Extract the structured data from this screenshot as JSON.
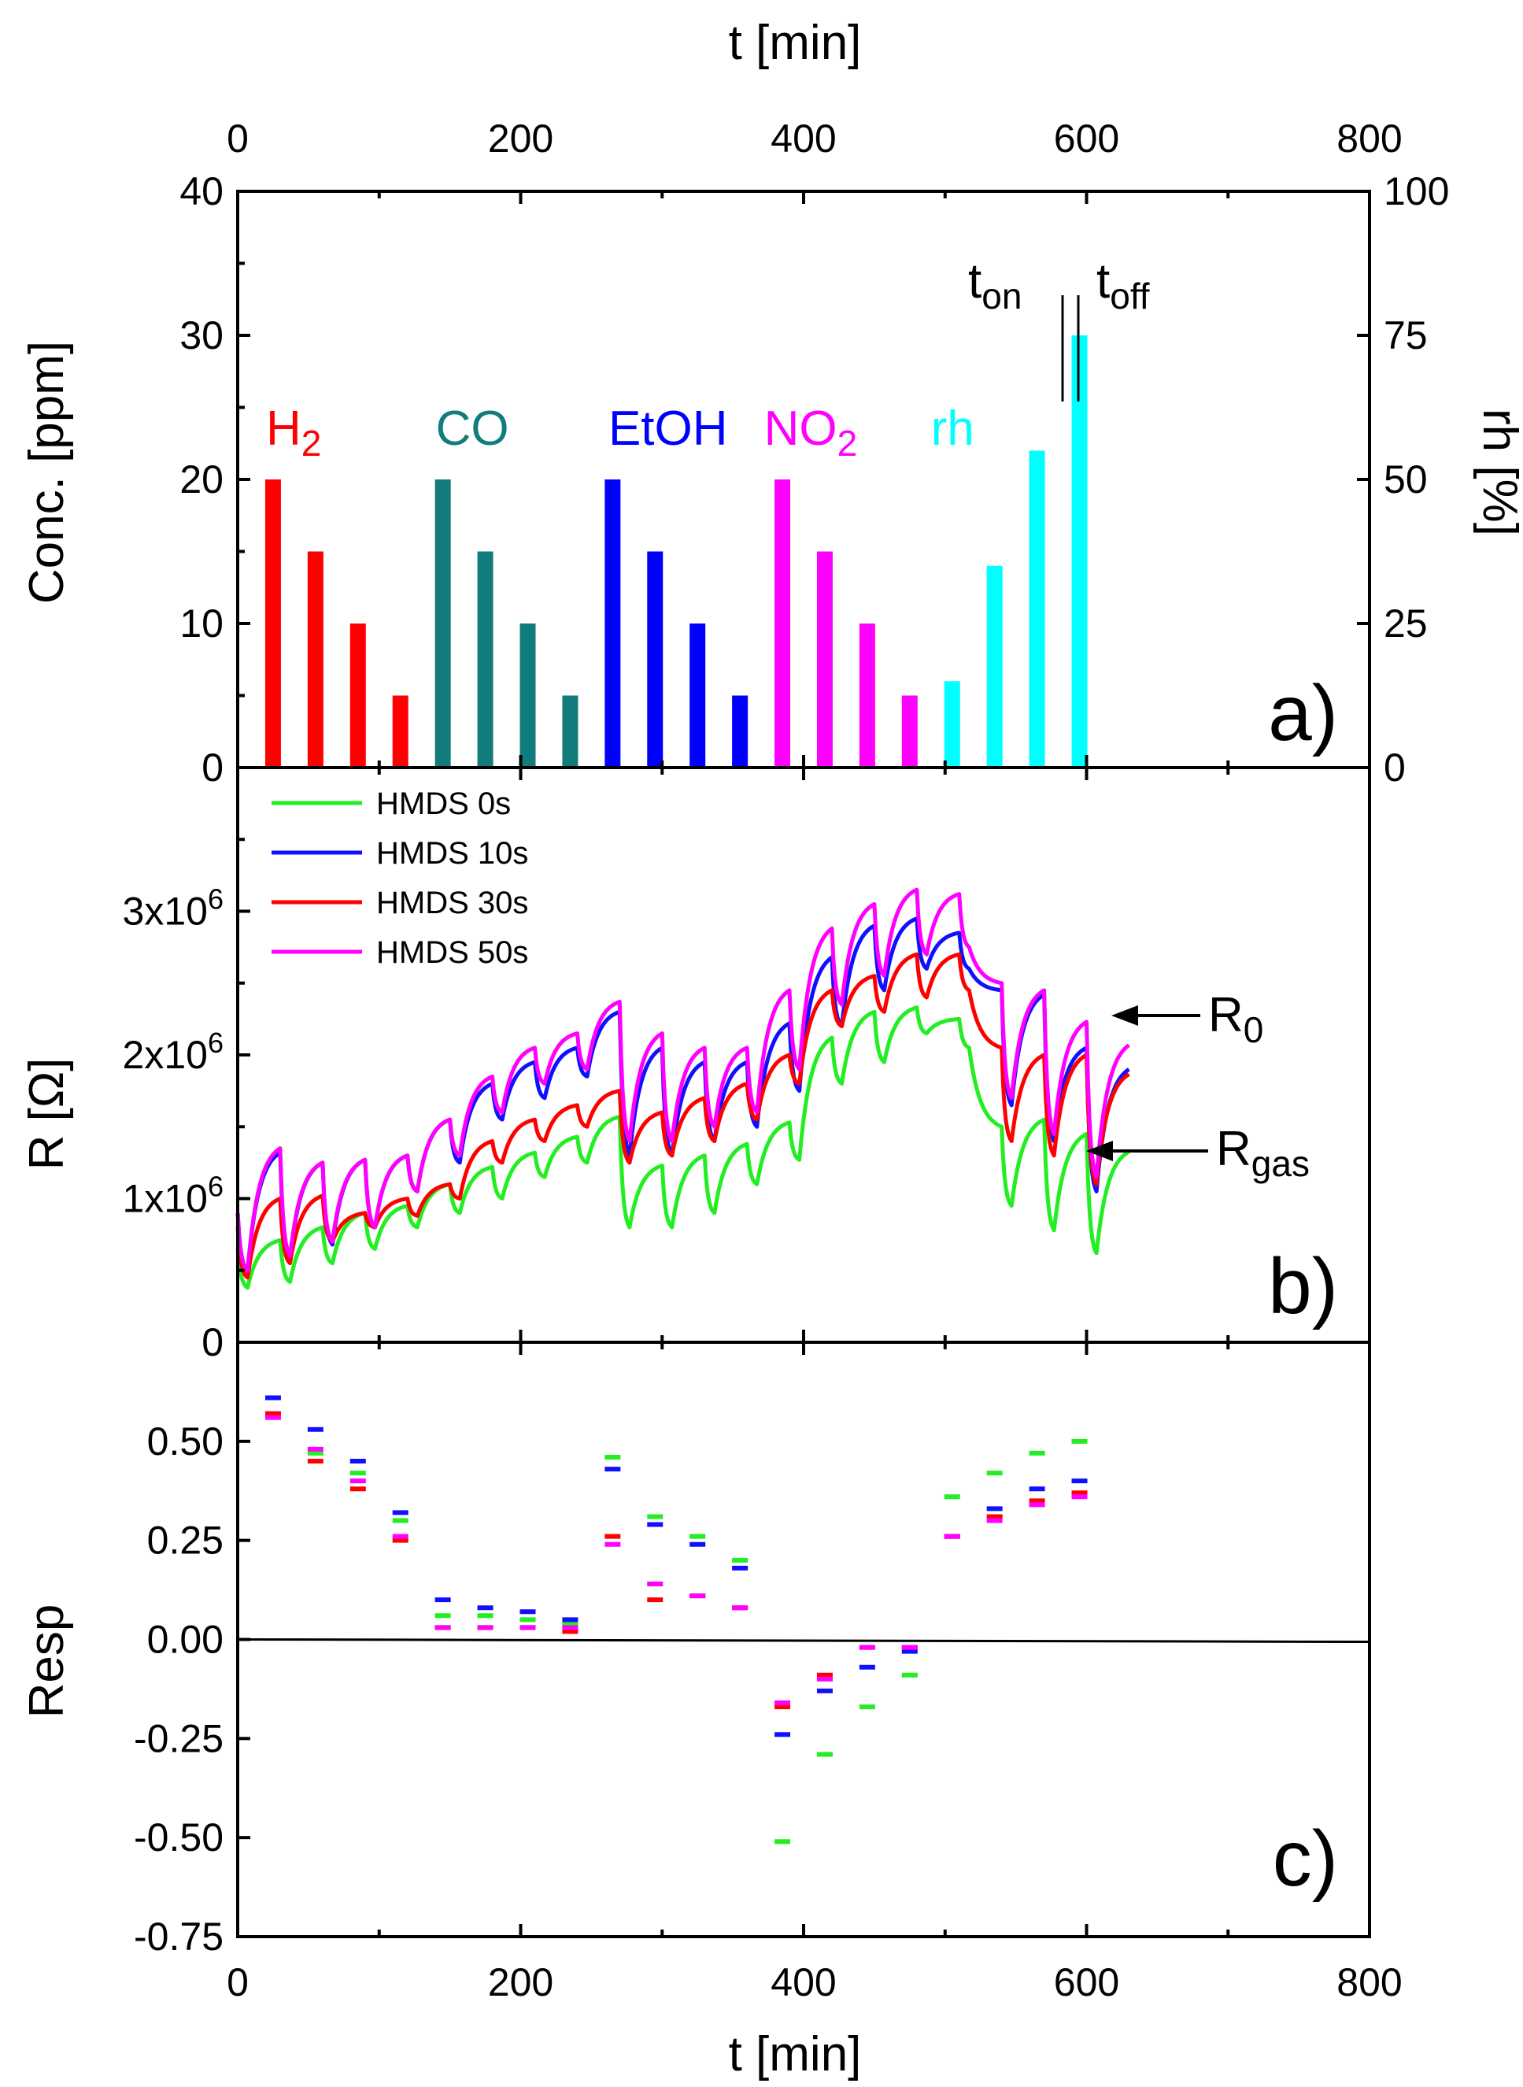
{
  "chart_data": [
    {
      "panel": "a)",
      "type": "bar",
      "top_axis": {
        "label": "t [min]",
        "ticks": [
          "0",
          "200",
          "400",
          "600",
          "800"
        ],
        "range": [
          0,
          800
        ]
      },
      "ylabel": "Conc. [ppm]",
      "ylim": [
        0,
        40
      ],
      "yticks": [
        "0",
        "10",
        "20",
        "30",
        "40"
      ],
      "y2label": "rh [%]",
      "y2lim": [
        0,
        100
      ],
      "y2ticks": [
        "0",
        "25",
        "50",
        "75",
        "100"
      ],
      "gas_labels": [
        {
          "name": "H2",
          "text": "H",
          "sub": "2",
          "color": "#ff0000",
          "t": 20
        },
        {
          "name": "CO",
          "text": "CO",
          "sub": "",
          "color": "#127b7b",
          "t": 140
        },
        {
          "name": "EtOH",
          "text": "EtOH",
          "sub": "",
          "color": "#0000ff",
          "t": 262
        },
        {
          "name": "NO2",
          "text": "NO",
          "sub": "2",
          "color": "#ff00ff",
          "t": 372
        },
        {
          "name": "rh",
          "text": "rh",
          "sub": "",
          "color": "#00ffff",
          "t": 490
        }
      ],
      "series": [
        {
          "name": "H2",
          "color": "#ff0000",
          "t": [
            25,
            55,
            85,
            115
          ],
          "values": [
            20,
            15,
            10,
            5
          ]
        },
        {
          "name": "CO",
          "color": "#127b7b",
          "t": [
            145,
            175,
            205,
            235
          ],
          "values": [
            20,
            15,
            10,
            5
          ]
        },
        {
          "name": "EtOH",
          "color": "#0000ff",
          "t": [
            265,
            295,
            325,
            355
          ],
          "values": [
            20,
            15,
            10,
            5
          ]
        },
        {
          "name": "NO2",
          "color": "#ff00ff",
          "t": [
            385,
            415,
            445,
            475
          ],
          "values": [
            20,
            15,
            10,
            5
          ]
        },
        {
          "name": "rh",
          "color": "#00ffff",
          "t": [
            505,
            535,
            565,
            595
          ],
          "values": [
            6,
            14,
            22,
            30
          ]
        }
      ],
      "annotations": {
        "t_on": "t",
        "t_on_sub": "on",
        "t_off": "t",
        "t_off_sub": "off"
      }
    },
    {
      "panel": "b)",
      "type": "line",
      "ylabel": "R [Ω]",
      "ylim": [
        0,
        4000000
      ],
      "yticks": [
        {
          "v": 0,
          "base": "0",
          "exp": ""
        },
        {
          "v": 1000000,
          "base": "1x10",
          "exp": "6"
        },
        {
          "v": 2000000,
          "base": "2x10",
          "exp": "6"
        },
        {
          "v": 3000000,
          "base": "3x10",
          "exp": "6"
        }
      ],
      "cycle_starts": [
        0,
        30,
        60,
        90,
        120,
        150,
        180,
        210,
        240,
        270,
        300,
        330,
        360,
        390,
        420,
        450,
        480,
        510,
        540,
        570,
        600
      ],
      "cycle_len": 30,
      "series": [
        {
          "name": "HMDS 0s",
          "color": "#22ee22",
          "R0": [
            0.66,
            0.71,
            0.8,
            0.9,
            0.95,
            1.1,
            1.22,
            1.32,
            1.43,
            1.57,
            1.23,
            1.3,
            1.38,
            1.53,
            2.12,
            2.3,
            2.33,
            2.25,
            1.5,
            1.55,
            1.45
          ],
          "Rgas": [
            0.38,
            0.42,
            0.55,
            0.65,
            0.8,
            0.9,
            1.0,
            1.15,
            1.25,
            0.8,
            0.8,
            0.9,
            1.1,
            1.27,
            1.8,
            1.95,
            2.15,
            2.05,
            0.95,
            0.78,
            0.62
          ]
        },
        {
          "name": "HMDS 10s",
          "color": "#1010ff",
          "R0": [
            0.9,
            1.32,
            1.25,
            1.27,
            1.3,
            1.55,
            1.8,
            1.95,
            2.05,
            2.3,
            2.05,
            1.95,
            1.95,
            2.22,
            2.68,
            2.9,
            2.95,
            2.85,
            2.45,
            2.42,
            2.05
          ],
          "Rgas": [
            0.5,
            0.58,
            0.68,
            0.8,
            1.05,
            1.25,
            1.55,
            1.7,
            1.85,
            1.3,
            1.3,
            1.4,
            1.5,
            1.75,
            2.2,
            2.45,
            2.6,
            2.6,
            1.65,
            1.4,
            1.05
          ]
        },
        {
          "name": "HMDS 30s",
          "color": "#ff0000",
          "R0": [
            0.8,
            1.0,
            1.02,
            0.9,
            1.0,
            1.1,
            1.4,
            1.55,
            1.65,
            1.75,
            1.6,
            1.7,
            1.8,
            2.0,
            2.45,
            2.55,
            2.7,
            2.7,
            2.05,
            2.0,
            2.0
          ],
          "Rgas": [
            0.45,
            0.55,
            0.7,
            0.8,
            0.88,
            1.0,
            1.25,
            1.4,
            1.5,
            1.25,
            1.3,
            1.4,
            1.55,
            1.8,
            2.2,
            2.3,
            2.4,
            2.45,
            1.4,
            1.3,
            1.1
          ]
        },
        {
          "name": "HMDS 50s",
          "color": "#ff00ff",
          "R0": [
            0.9,
            1.35,
            1.25,
            1.27,
            1.3,
            1.55,
            1.85,
            2.05,
            2.15,
            2.37,
            2.15,
            2.05,
            2.05,
            2.45,
            2.88,
            3.05,
            3.15,
            3.12,
            2.5,
            2.45,
            2.23
          ],
          "Rgas": [
            0.5,
            0.6,
            0.7,
            0.8,
            1.05,
            1.3,
            1.6,
            1.8,
            1.9,
            1.4,
            1.4,
            1.5,
            1.6,
            1.9,
            2.35,
            2.55,
            2.7,
            2.75,
            1.7,
            1.45,
            1.15
          ]
        }
      ],
      "legend": [
        "HMDS 0s",
        "HMDS 10s",
        "HMDS 30s",
        "HMDS 50s"
      ],
      "legend_location": "top-left",
      "annotations": {
        "R0": "R",
        "R0_sub": "0",
        "Rgas": "R",
        "Rgas_sub": "gas"
      }
    },
    {
      "panel": "c)",
      "type": "scatter",
      "marker": "dash",
      "xlabel": "t [min]",
      "xlim": [
        0,
        800
      ],
      "xticks": [
        "0",
        "200",
        "400",
        "600",
        "800"
      ],
      "ylabel": "Resp",
      "ylim": [
        -0.75,
        0.75
      ],
      "yticks": [
        "0.50",
        "0.25",
        "0.00",
        "-0.25",
        "-0.50",
        "-0.75"
      ],
      "t": [
        25,
        55,
        85,
        115,
        145,
        175,
        205,
        235,
        265,
        295,
        325,
        355,
        385,
        415,
        445,
        475,
        505,
        535,
        565,
        595
      ],
      "series": [
        {
          "name": "HMDS 0s",
          "color": "#22ee22",
          "values": [
            0.57,
            0.47,
            0.42,
            0.3,
            0.06,
            0.06,
            0.05,
            0.04,
            0.46,
            0.31,
            0.26,
            0.2,
            -0.51,
            -0.29,
            -0.17,
            -0.09,
            0.36,
            0.42,
            0.47,
            0.5
          ]
        },
        {
          "name": "HMDS 10s",
          "color": "#1010ff",
          "values": [
            0.61,
            0.53,
            0.45,
            0.32,
            0.1,
            0.08,
            0.07,
            0.05,
            0.43,
            0.29,
            0.24,
            0.18,
            -0.24,
            -0.13,
            -0.07,
            -0.03,
            0.26,
            0.33,
            0.38,
            0.4
          ]
        },
        {
          "name": "HMDS 30s",
          "color": "#ff0000",
          "values": [
            0.57,
            0.45,
            0.38,
            0.25,
            0.03,
            0.03,
            0.03,
            0.02,
            0.26,
            0.1,
            0.11,
            0.08,
            -0.17,
            -0.09,
            -0.02,
            -0.02,
            0.26,
            0.31,
            0.35,
            0.37
          ]
        },
        {
          "name": "HMDS 50s",
          "color": "#ff00ff",
          "values": [
            0.56,
            0.48,
            0.4,
            0.26,
            0.03,
            0.03,
            0.03,
            0.03,
            0.24,
            0.14,
            0.11,
            0.08,
            -0.16,
            -0.1,
            -0.02,
            -0.02,
            0.26,
            0.3,
            0.34,
            0.36
          ]
        }
      ]
    }
  ]
}
